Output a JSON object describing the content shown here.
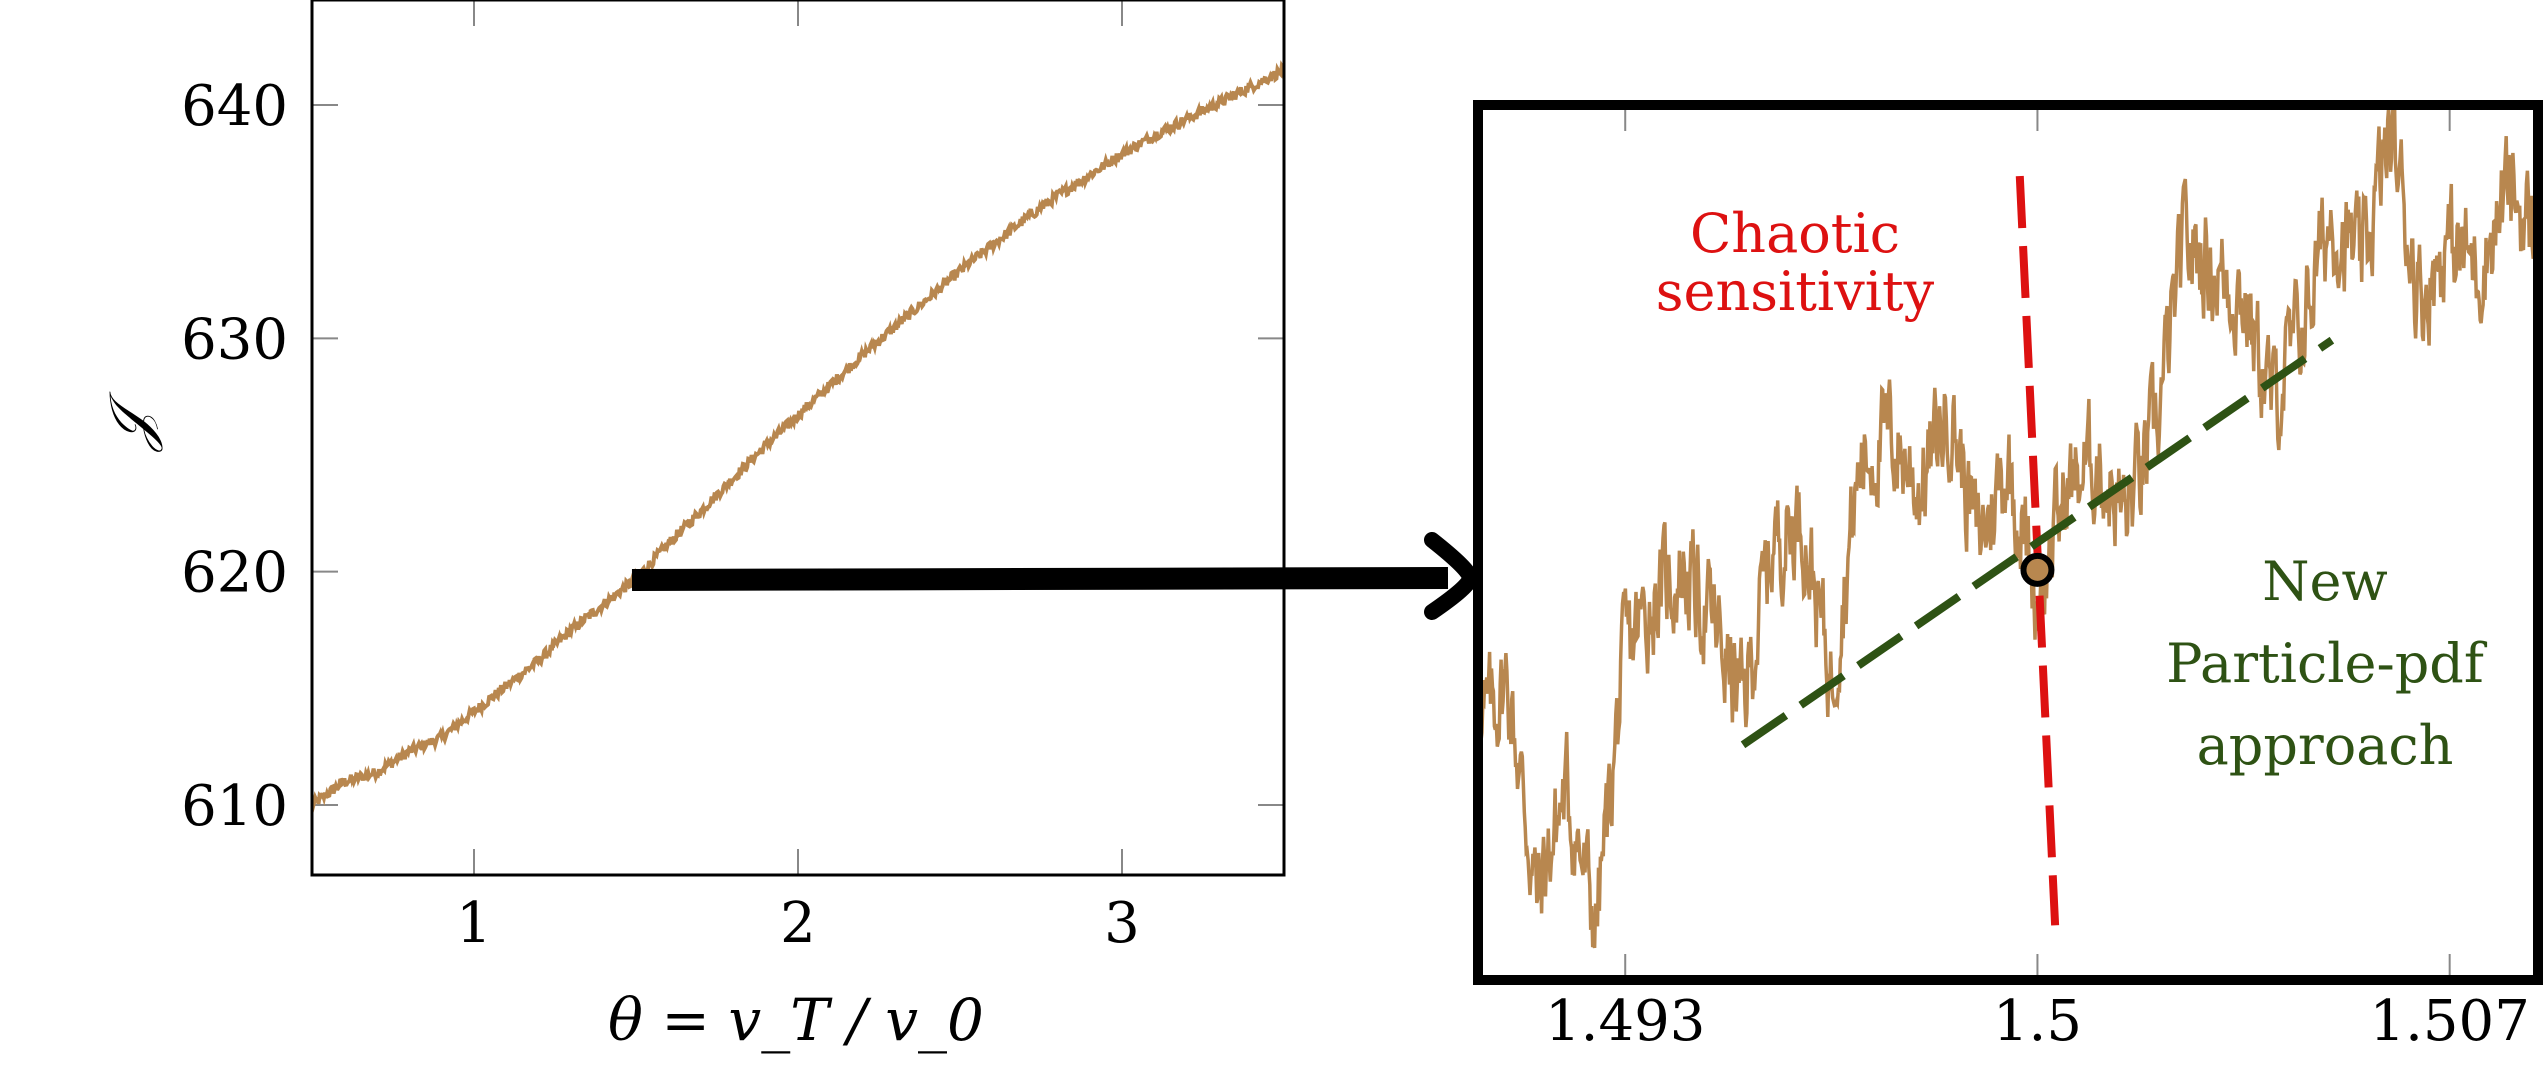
{
  "colors": {
    "series": "#b8874f",
    "chaotic": "#dd1111",
    "particle": "#2e5214",
    "frame": "#000000",
    "marker_fill": "#b8874f"
  },
  "chart_data": [
    {
      "id": "main",
      "type": "line",
      "title": "",
      "xlabel": "θ = v_T / v_0",
      "ylabel": "𝒥",
      "xlim": [
        0.5,
        3.5
      ],
      "ylim": [
        607,
        644.5
      ],
      "xticks": [
        1,
        2,
        3
      ],
      "yticks": [
        610,
        620,
        630,
        640
      ],
      "x_tick_labels": [
        "1",
        "2",
        "3"
      ],
      "y_tick_labels": [
        "610",
        "620",
        "630",
        "640"
      ],
      "grid": false,
      "series": [
        {
          "x": [
            0.5,
            0.6,
            0.7,
            0.8,
            0.9,
            1.0,
            1.1,
            1.2,
            1.3,
            1.4,
            1.5,
            1.6,
            1.7,
            1.8,
            1.9,
            2.0,
            2.1,
            2.2,
            2.3,
            2.4,
            2.5,
            2.6,
            2.7,
            2.8,
            2.9,
            3.0,
            3.1,
            3.2,
            3.3,
            3.4,
            3.5
          ],
          "y": [
            610.0,
            611.0,
            611.4,
            612.3,
            612.9,
            614.0,
            615.1,
            616.2,
            617.5,
            618.6,
            619.7,
            621.2,
            622.6,
            624.0,
            625.4,
            626.7,
            628.0,
            629.3,
            630.5,
            631.7,
            632.9,
            634.0,
            635.1,
            636.1,
            637.0,
            637.9,
            638.7,
            639.4,
            640.1,
            640.8,
            641.5
          ]
        }
      ]
    },
    {
      "id": "zoom",
      "type": "line",
      "title": "",
      "xlabel": "",
      "ylabel": "",
      "xlim": [
        1.4905,
        1.5085
      ],
      "ylim": [
        618.25,
        619.85
      ],
      "xticks": [
        1.493,
        1.5,
        1.507
      ],
      "x_tick_labels": [
        "1.493",
        "1.5",
        "1.507"
      ],
      "grid": false,
      "series": [
        {
          "x": [
            1.4905,
            1.491,
            1.4915,
            1.492,
            1.4925,
            1.493,
            1.4935,
            1.494,
            1.4945,
            1.495,
            1.4955,
            1.496,
            1.4965,
            1.497,
            1.4975,
            1.498,
            1.4985,
            1.499,
            1.4995,
            1.5,
            1.5005,
            1.501,
            1.5015,
            1.502,
            1.5025,
            1.503,
            1.5035,
            1.504,
            1.5045,
            1.505,
            1.5055,
            1.506,
            1.5065,
            1.507,
            1.5075,
            1.508,
            1.5085
          ],
          "y": [
            618.7,
            618.8,
            618.4,
            618.6,
            618.35,
            618.85,
            618.95,
            619.0,
            618.9,
            618.75,
            619.05,
            619.1,
            618.8,
            619.2,
            619.25,
            619.15,
            619.3,
            619.05,
            619.2,
            618.95,
            619.15,
            619.2,
            619.1,
            619.25,
            619.6,
            619.55,
            619.5,
            619.3,
            619.45,
            619.65,
            619.55,
            619.8,
            619.5,
            619.6,
            619.55,
            619.7,
            619.6
          ]
        },
        {
          "name": "Chaotic sensitivity",
          "x": [
            1.4997,
            1.5003
          ],
          "y": [
            619.72,
            618.35
          ]
        },
        {
          "name": "New Particle-pdf approach",
          "x": [
            1.495,
            1.505
          ],
          "y": [
            618.68,
            619.42
          ]
        }
      ],
      "marker": {
        "x": 1.5,
        "y": 619.0
      },
      "annotations": [
        {
          "lines": [
            "Chaotic",
            "sensitivity"
          ]
        },
        {
          "lines": [
            "New",
            "Particle-pdf",
            "approach"
          ]
        }
      ]
    }
  ]
}
